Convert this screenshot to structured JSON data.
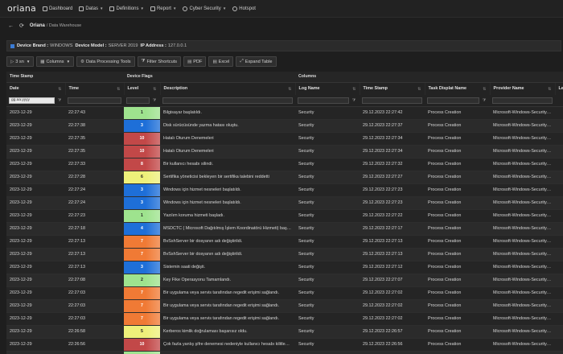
{
  "nav": {
    "brand": "oriana",
    "items": [
      {
        "label": "Dashboard",
        "icon": "dashboard-icon",
        "caret": false
      },
      {
        "label": "Datas",
        "icon": "database-icon",
        "caret": true
      },
      {
        "label": "Definitions",
        "icon": "definitions-icon",
        "caret": true
      },
      {
        "label": "Report",
        "icon": "warning-icon",
        "caret": true
      },
      {
        "label": "Cyber Security",
        "icon": "people-icon",
        "caret": true
      },
      {
        "label": "Hotspot",
        "icon": "wifi-icon",
        "caret": false
      }
    ]
  },
  "breadcrumb": {
    "back": "←",
    "refresh": "⟳",
    "title": "Oriana",
    "sub": "/ Data Warehouse"
  },
  "device": {
    "brand_label": "Device Brand :",
    "brand_value": "WINDOWS",
    "model_label": "Device Model :",
    "model_value": "SERVER 2019",
    "ip_label": "IP Address :",
    "ip_value": "127.0.0.1"
  },
  "toolbar": {
    "page_size": "3 sn",
    "columns": "Columns",
    "processing": "Data Processing Tools",
    "filters": "Filter Shortcuts",
    "pdf": "PDF",
    "excel": "Excel",
    "expand": "Expand Table"
  },
  "groups": {
    "timestamp": "Time Stamp",
    "flags": "Device Flags",
    "columns": "Columns"
  },
  "headers": {
    "date": "Date",
    "time": "Time",
    "level": "Level",
    "description": "Description",
    "log_name": "Log Name",
    "time_stamp": "Time Stamp",
    "task": "Task Displat Name",
    "provider": "Provider Name",
    "next": "Le"
  },
  "filter": {
    "date_placeholder": "gg.aa.yyyy"
  },
  "colors": {
    "green": "#9ee38e",
    "blue": "#1e6fd8",
    "red": "#c24848",
    "orange": "#f07a35",
    "yellow": "#eef07a"
  },
  "rows": [
    {
      "date": "2023-12-29",
      "time": "22:27:43",
      "level": "1",
      "color": "green",
      "description": "Bilgisayar başlatıldı.",
      "log": "Security",
      "stamp": "29.12.2023 22:27:42",
      "task": "Process Creation",
      "provider": "Microsoft-Windows-Security-..."
    },
    {
      "date": "2023-12-29",
      "time": "22:27:38",
      "level": "3",
      "color": "blue",
      "description": "Disk sürücüsünde yazma hatası oluştu.",
      "log": "Security",
      "stamp": "29.12.2023 22:27:37",
      "task": "Process Creation",
      "provider": "Microsoft-Windows-Security-..."
    },
    {
      "date": "2023-12-29",
      "time": "22:27:35",
      "level": "10",
      "color": "red",
      "description": "Hatalı Oturum Denemeleri",
      "log": "Security",
      "stamp": "29.12.2023 22:27:34",
      "task": "Process Creation",
      "provider": "Microsoft-Windows-Security-..."
    },
    {
      "date": "2023-12-29",
      "time": "22:27:35",
      "level": "10",
      "color": "red",
      "description": "Hatalı Oturum Denemeleri",
      "log": "Security",
      "stamp": "29.12.2023 22:27:34",
      "task": "Process Creation",
      "provider": "Microsoft-Windows-Security-..."
    },
    {
      "date": "2023-12-29",
      "time": "22:27:33",
      "level": "8",
      "color": "red",
      "description": "Bir kullanıcı hesabı silindi.",
      "log": "Security",
      "stamp": "29.12.2023 22:27:32",
      "task": "Process Creation",
      "provider": "Microsoft-Windows-Security-..."
    },
    {
      "date": "2023-12-29",
      "time": "22:27:28",
      "level": "6",
      "color": "yellow",
      "description": "Sertifika yöneticisi bekleyen bir sertifika talebini reddetti",
      "log": "Security",
      "stamp": "29.12.2023 22:27:27",
      "task": "Process Creation",
      "provider": "Microsoft-Windows-Security-..."
    },
    {
      "date": "2023-12-29",
      "time": "22:27:24",
      "level": "3",
      "color": "blue",
      "description": "Windows için hizmet nesneleri başlatıldı.",
      "log": "Security",
      "stamp": "29.12.2023 22:27:23",
      "task": "Process Creation",
      "provider": "Microsoft-Windows-Security-..."
    },
    {
      "date": "2023-12-29",
      "time": "22:27:24",
      "level": "3",
      "color": "blue",
      "description": "Windows için hizmet nesneleri başlatıldı.",
      "log": "Security",
      "stamp": "29.12.2023 22:27:23",
      "task": "Process Creation",
      "provider": "Microsoft-Windows-Security-..."
    },
    {
      "date": "2023-12-29",
      "time": "22:27:23",
      "level": "1",
      "color": "green",
      "description": "Yazılım koruma hizmeti başladı.",
      "log": "Security",
      "stamp": "29.12.2023 22:27:22",
      "task": "Process Creation",
      "provider": "Microsoft-Windows-Security-..."
    },
    {
      "date": "2023-12-29",
      "time": "22:27:18",
      "level": "4",
      "color": "blue",
      "description": "MSDCTC ( Microsoft Dağıtılmış İşlem Koordinatörü Hizmeti) başlatıldı.",
      "log": "Security",
      "stamp": "29.12.2023 22:27:17",
      "task": "Process Creation",
      "provider": "Microsoft-Windows-Security-..."
    },
    {
      "date": "2023-12-29",
      "time": "22:27:13",
      "level": "7",
      "color": "orange",
      "description": "BvSshServer bir dosyanın adı değiştirildi.",
      "log": "Security",
      "stamp": "29.12.2023 22:27:13",
      "task": "Process Creation",
      "provider": "Microsoft-Windows-Security-..."
    },
    {
      "date": "2023-12-29",
      "time": "22:27:13",
      "level": "7",
      "color": "orange",
      "description": "BvSshServer bir dosyanın adı değiştirildi.",
      "log": "Security",
      "stamp": "29.12.2023 22:27:13",
      "task": "Process Creation",
      "provider": "Microsoft-Windows-Security-..."
    },
    {
      "date": "2023-12-29",
      "time": "22:27:13",
      "level": "3",
      "color": "blue",
      "description": "Sistemin saati değişti.",
      "log": "Security",
      "stamp": "29.12.2023 22:27:12",
      "task": "Process Creation",
      "provider": "Microsoft-Windows-Security-..."
    },
    {
      "date": "2023-12-29",
      "time": "22:27:08",
      "level": "2",
      "color": "green",
      "description": "Key Fike Operasyonu Tamamlandı.",
      "log": "Security",
      "stamp": "29.12.2023 22:27:07",
      "task": "Process Creation",
      "provider": "Microsoft-Windows-Security-..."
    },
    {
      "date": "2023-12-29",
      "time": "22:27:03",
      "level": "7",
      "color": "orange",
      "description": "Bir uygulama veya servis tarafından regedit erişimi sağlandı.",
      "log": "Security",
      "stamp": "29.12.2023 22:27:02",
      "task": "Process Creation",
      "provider": "Microsoft-Windows-Security-..."
    },
    {
      "date": "2023-12-29",
      "time": "22:27:03",
      "level": "7",
      "color": "orange",
      "description": "Bir uygulama veya servis tarafından regedit erişimi sağlandı.",
      "log": "Security",
      "stamp": "29.12.2023 22:27:02",
      "task": "Process Creation",
      "provider": "Microsoft-Windows-Security-..."
    },
    {
      "date": "2023-12-29",
      "time": "22:27:03",
      "level": "7",
      "color": "orange",
      "description": "Bir uygulama veya servis tarafından regedit erişimi sağlandı.",
      "log": "Security",
      "stamp": "29.12.2023 22:27:02",
      "task": "Process Creation",
      "provider": "Microsoft-Windows-Security-..."
    },
    {
      "date": "2023-12-29",
      "time": "22:26:58",
      "level": "5",
      "color": "yellow",
      "description": "Kerberos kimlik doğrulaması başarısız oldu.",
      "log": "Security",
      "stamp": "29.12.2023 22:26:57",
      "task": "Process Creation",
      "provider": "Microsoft-Windows-Security-..."
    },
    {
      "date": "2023-12-29",
      "time": "22:26:56",
      "level": "10",
      "color": "red",
      "description": "Çok fazla yanlış şifre denemesi nedeniyle kullanıcı hesabı kilitlendi.",
      "log": "Security",
      "stamp": "29.12.2023 22:26:56",
      "task": "Process Creation",
      "provider": "Microsoft-Windows-Security-..."
    },
    {
      "date": "2023-12-29",
      "time": "22:26:56",
      "level": "1",
      "color": "green",
      "description": "msfeedssync.exe prosesi başlatıldı.",
      "log": "Security",
      "stamp": "29.12.2023 22:26:56",
      "task": "Process Creation",
      "provider": "Microsoft-Windows-Security-..."
    }
  ]
}
